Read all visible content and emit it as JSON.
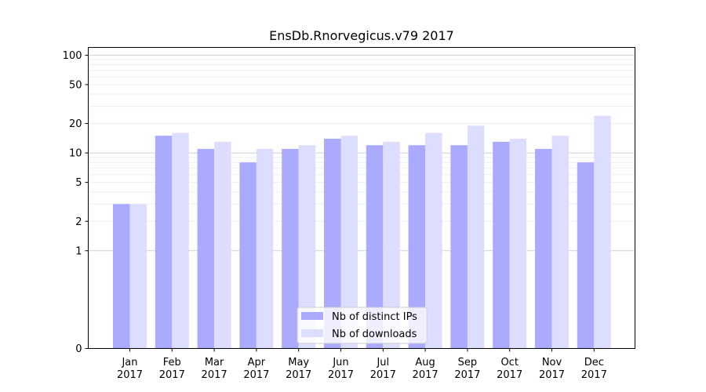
{
  "chart_data": {
    "type": "bar",
    "title": "EnsDb.Rnorvegicus.v79 2017",
    "xlabel": "",
    "ylabel": "",
    "y_scale": "symlog",
    "ylim": [
      0,
      120
    ],
    "y_ticks": [
      0,
      1,
      2,
      5,
      10,
      20,
      50,
      100
    ],
    "grid": "horizontal",
    "legend_position": "bottom-center",
    "categories": [
      [
        "Jan",
        "2017"
      ],
      [
        "Feb",
        "2017"
      ],
      [
        "Mar",
        "2017"
      ],
      [
        "Apr",
        "2017"
      ],
      [
        "May",
        "2017"
      ],
      [
        "Jun",
        "2017"
      ],
      [
        "Jul",
        "2017"
      ],
      [
        "Aug",
        "2017"
      ],
      [
        "Sep",
        "2017"
      ],
      [
        "Oct",
        "2017"
      ],
      [
        "Nov",
        "2017"
      ],
      [
        "Dec",
        "2017"
      ]
    ],
    "series": [
      {
        "name": "Nb of distinct IPs",
        "color": "#aaaaff",
        "values": [
          3,
          15,
          11,
          8,
          11,
          14,
          12,
          12,
          12,
          13,
          11,
          8
        ]
      },
      {
        "name": "Nb of downloads",
        "color": "#ddddff",
        "values": [
          3,
          16,
          13,
          11,
          12,
          15,
          13,
          16,
          19,
          14,
          15,
          24
        ]
      }
    ]
  }
}
